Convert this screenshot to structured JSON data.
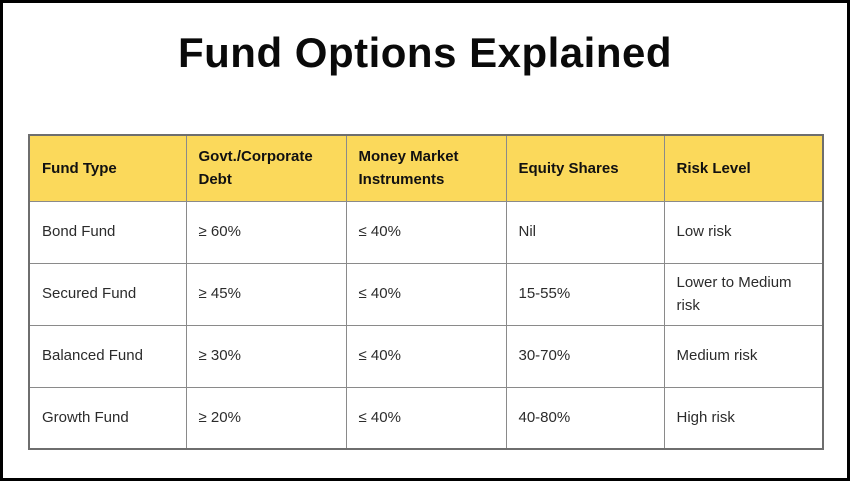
{
  "page": {
    "title": "Fund Options Explained"
  },
  "table": {
    "columns": [
      "Fund Type",
      "Govt./Corporate Debt",
      "Money Market Instruments",
      "Equity Shares",
      "Risk Level"
    ],
    "rows": [
      [
        "Bond Fund",
        "≥ 60%",
        "≤ 40%",
        "Nil",
        "Low risk"
      ],
      [
        "Secured Fund",
        "≥ 45%",
        "≤ 40%",
        "15-55%",
        "Lower to Medium risk"
      ],
      [
        "Balanced Fund",
        "≥ 30%",
        "≤ 40%",
        "30-70%",
        "Medium risk"
      ],
      [
        "Growth Fund",
        "≥ 20%",
        "≤ 40%",
        "40-80%",
        "High risk"
      ]
    ]
  },
  "colors": {
    "header_bg": "#FBD95B",
    "table_border": "#8a8a8a",
    "frame_border": "#000000"
  },
  "chart_data": {
    "type": "table",
    "title": "Fund Options Explained",
    "columns": [
      "Fund Type",
      "Govt./Corporate Debt",
      "Money Market Instruments",
      "Equity Shares",
      "Risk Level"
    ],
    "rows": [
      [
        "Bond Fund",
        "≥ 60%",
        "≤ 40%",
        "Nil",
        "Low risk"
      ],
      [
        "Secured Fund",
        "≥ 45%",
        "≤ 40%",
        "15-55%",
        "Lower to Medium risk"
      ],
      [
        "Balanced Fund",
        "≥ 30%",
        "≤ 40%",
        "30-70%",
        "Medium risk"
      ],
      [
        "Growth Fund",
        "≥ 20%",
        "≤ 40%",
        "40-80%",
        "High risk"
      ]
    ],
    "layout": {
      "header_background": "#FBD95B",
      "grid": true,
      "title_position": "top-center"
    }
  }
}
